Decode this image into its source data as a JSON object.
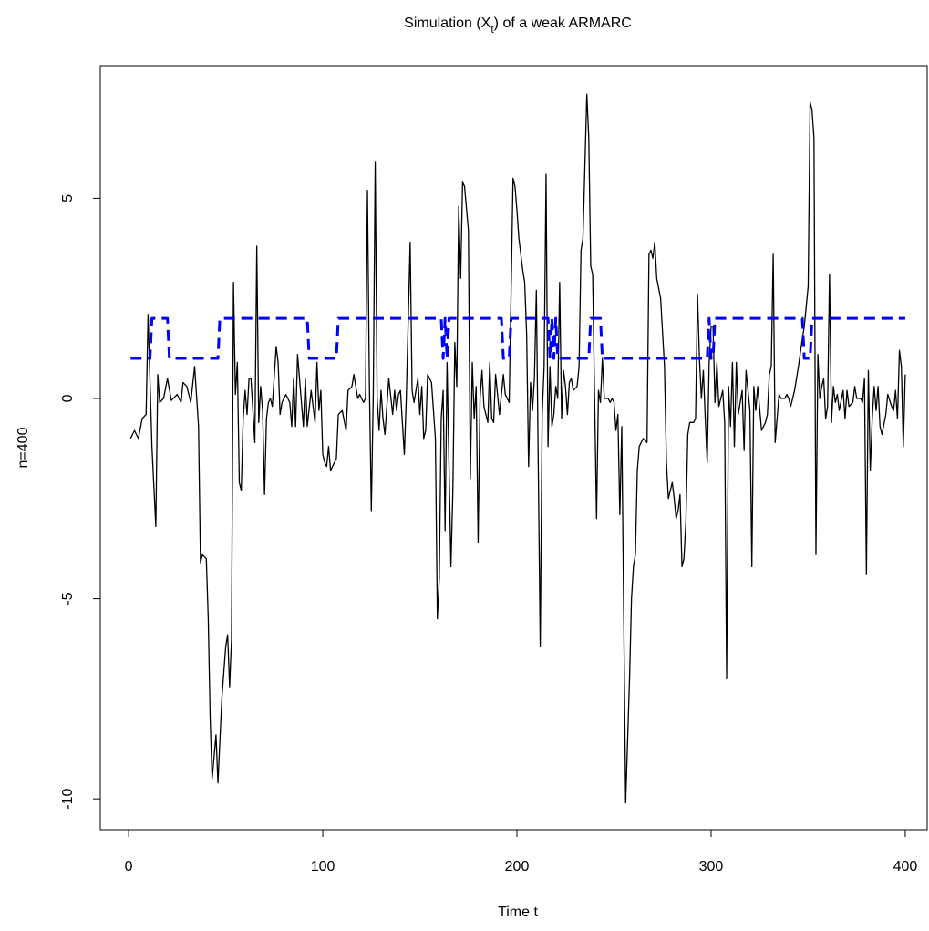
{
  "chart_data": {
    "type": "line",
    "title": [
      "Simulation (X",
      "t",
      ") of a weak ARMARC"
    ],
    "xlabel": "Time t",
    "ylabel": "n=400",
    "xlim": [
      -14.6,
      411.3
    ],
    "ylim": [
      -10.77,
      8.31
    ],
    "xticks": [
      0,
      100,
      200,
      300,
      400
    ],
    "yticks": [
      -10,
      -5,
      0,
      5
    ],
    "series": [
      {
        "color": "#000000",
        "dash": false,
        "x": [
          1,
          3,
          5,
          7,
          9,
          10,
          12,
          14,
          15,
          16,
          18,
          20,
          22,
          25,
          27,
          28,
          30,
          32,
          34,
          36,
          37,
          38,
          40,
          41,
          42,
          43,
          45,
          46,
          48,
          50,
          51,
          52,
          53,
          54,
          55,
          56,
          57,
          58,
          59,
          60,
          61,
          62,
          63,
          64,
          65,
          66,
          67,
          68,
          69,
          70,
          71,
          72,
          73,
          74,
          76,
          77,
          78,
          79,
          81,
          83,
          84,
          85,
          86,
          87,
          89,
          90,
          91,
          92,
          94,
          96,
          97,
          98,
          99,
          100,
          101,
          102,
          103,
          104,
          105,
          107,
          108,
          110,
          112,
          113,
          115,
          116,
          118,
          119,
          121,
          122,
          123,
          124,
          125,
          126,
          127,
          128,
          129,
          130,
          131,
          132,
          133,
          134,
          136,
          137,
          138,
          139,
          140,
          142,
          143,
          145,
          146,
          147,
          149,
          150,
          151,
          152,
          153,
          154,
          156,
          157,
          158,
          159,
          160,
          161,
          162,
          163,
          164,
          166,
          167,
          168,
          169,
          170,
          171,
          172,
          173,
          175,
          176,
          177,
          178,
          179,
          180,
          181,
          182,
          183,
          185,
          186,
          187,
          188,
          189,
          190,
          191,
          192,
          193,
          194,
          196,
          198,
          199,
          200,
          201,
          203,
          204,
          205,
          206,
          207,
          208,
          209,
          210,
          212,
          213,
          214,
          215,
          216,
          217,
          218,
          219,
          220,
          221,
          222,
          223,
          224,
          225,
          226,
          227,
          228,
          229,
          231,
          232,
          233,
          234,
          236,
          237,
          238,
          239,
          240,
          241,
          242,
          243,
          244,
          245,
          247,
          248,
          249,
          250,
          251,
          252,
          253,
          254,
          256,
          258,
          259,
          260,
          261,
          262,
          263,
          265,
          267,
          268,
          269,
          270,
          271,
          272,
          274,
          276,
          277,
          278,
          279,
          280,
          281,
          282,
          283,
          284,
          285,
          286,
          287,
          288,
          289,
          291,
          292,
          293,
          294,
          295,
          296,
          297,
          298,
          299,
          300,
          301,
          302,
          303,
          304,
          306,
          307,
          308,
          309,
          310,
          311,
          312,
          313,
          314,
          316,
          317,
          318,
          320,
          321,
          322,
          323,
          324,
          326,
          328,
          329,
          330,
          331,
          332,
          333,
          335,
          336,
          338,
          339,
          340,
          341,
          343,
          345,
          347,
          348,
          350,
          351,
          352,
          353,
          354,
          355,
          356,
          357,
          358,
          359,
          360,
          361,
          362,
          363,
          364,
          365,
          366,
          368,
          369,
          370,
          371,
          373,
          374,
          375,
          377,
          378,
          379,
          380,
          381,
          382,
          383,
          384,
          385,
          386,
          387,
          388,
          390,
          391,
          393,
          394,
          395,
          396,
          397,
          398,
          399,
          400
        ],
        "values": [
          -1.0,
          -0.8,
          -1.0,
          -0.5,
          -0.4,
          2.1,
          -1.2,
          -3.2,
          0.6,
          -0.1,
          0.0,
          0.5,
          -0.05,
          0.1,
          -0.1,
          0.4,
          0.3,
          -0.1,
          0.8,
          -0.7,
          -4.1,
          -3.9,
          -4.0,
          -5.5,
          -8.0,
          -9.5,
          -8.4,
          -9.6,
          -7.5,
          -6.2,
          -5.9,
          -7.2,
          -6.0,
          2.9,
          0.1,
          0.9,
          -2.1,
          -2.3,
          -0.5,
          0.2,
          -0.4,
          0.5,
          0.5,
          -0.3,
          -1.1,
          3.8,
          -0.6,
          0.3,
          -0.3,
          -2.4,
          -0.5,
          -0.1,
          0.0,
          -0.2,
          1.3,
          0.9,
          -0.4,
          -0.1,
          0.1,
          -0.1,
          -0.7,
          0.5,
          -0.7,
          1.1,
          -0.1,
          -0.7,
          0.5,
          -0.7,
          0.2,
          -0.6,
          0.9,
          -0.3,
          0.2,
          -1.4,
          -1.6,
          -1.7,
          -1.2,
          -1.8,
          -1.7,
          -1.5,
          -0.4,
          -0.3,
          -0.8,
          0.2,
          0.3,
          0.6,
          0.0,
          0.1,
          -0.1,
          0.0,
          5.2,
          0.4,
          -2.8,
          0.1,
          5.9,
          0.0,
          -0.8,
          0.2,
          -0.5,
          -0.9,
          -0.2,
          0.5,
          -0.4,
          0.2,
          -0.3,
          0.1,
          0.2,
          -1.4,
          0.0,
          3.9,
          0.2,
          -0.1,
          0.5,
          -0.4,
          0.3,
          -1.0,
          -0.8,
          0.6,
          0.4,
          -0.3,
          -1.0,
          -5.5,
          -4.5,
          -0.5,
          0.2,
          -3.3,
          0.9,
          -4.2,
          -2.3,
          1.4,
          0.3,
          4.8,
          3.0,
          5.4,
          5.3,
          4.2,
          -2.0,
          0.9,
          -0.5,
          0.3,
          -3.6,
          0.0,
          0.7,
          -0.2,
          -0.6,
          0.9,
          -0.5,
          -0.6,
          0.6,
          0.1,
          -0.4,
          0.1,
          0.6,
          0.1,
          -0.1,
          5.5,
          5.3,
          4.7,
          4.0,
          3.2,
          2.9,
          1.6,
          -1.7,
          0.4,
          -0.3,
          0.5,
          2.7,
          -6.2,
          -0.4,
          0.8,
          5.6,
          -1.2,
          0.8,
          -0.7,
          -0.4,
          0.3,
          0.0,
          2.9,
          -0.5,
          0.7,
          0.3,
          -0.4,
          0.4,
          0.5,
          0.2,
          0.3,
          0.8,
          3.7,
          4.0,
          7.6,
          6.5,
          3.3,
          3.1,
          0.0,
          -3.0,
          0.2,
          -0.1,
          1.0,
          0.0,
          0.0,
          -0.1,
          0.0,
          -0.1,
          -0.8,
          -0.4,
          -2.9,
          -0.7,
          -10.1,
          -7.0,
          -5.0,
          -4.2,
          -3.9,
          -1.8,
          -1.2,
          -1.0,
          -1.1,
          3.6,
          3.7,
          3.5,
          3.9,
          3.0,
          2.5,
          0.8,
          -1.6,
          -2.5,
          -2.3,
          -2.1,
          -2.5,
          -3.0,
          -2.8,
          -2.4,
          -4.2,
          -4.0,
          -3.1,
          -0.9,
          -0.6,
          -0.6,
          -0.5,
          2.6,
          1.0,
          0.0,
          0.7,
          -0.5,
          -1.6,
          0.9,
          1.8,
          1.8,
          -0.1,
          0.9,
          -0.2,
          0.2,
          -0.6,
          -7.0,
          0.3,
          -0.7,
          0.9,
          -1.2,
          0.9,
          -0.4,
          0.2,
          -1.3,
          0.7,
          -0.3,
          -4.2,
          0.3,
          -0.3,
          0.3,
          -0.8,
          -0.6,
          -0.4,
          0.6,
          0.8,
          3.6,
          -1.1,
          0.1,
          0.0,
          0.0,
          0.1,
          0.0,
          -0.2,
          0.2,
          0.8,
          1.5,
          1.8,
          2.8,
          7.4,
          7.2,
          6.5,
          -3.9,
          1.1,
          0.0,
          0.3,
          0.5,
          -0.5,
          -0.2,
          3.1,
          -0.6,
          0.3,
          -0.1,
          0.1,
          -0.3,
          0.2,
          -0.5,
          0.2,
          -0.2,
          -0.1,
          0.3,
          0.0,
          0.0,
          -0.1,
          0.5,
          -4.4,
          0.7,
          -1.8,
          -0.5,
          0.3,
          -0.3,
          0.3,
          -0.7,
          -0.9,
          -0.4,
          0.1,
          -0.2,
          -0.3,
          0.2,
          -0.5,
          1.2,
          0.8,
          -1.2,
          0.6
        ]
      },
      {
        "color": "#0000ff",
        "dash": true,
        "x": [
          1,
          11,
          12,
          20,
          21,
          46,
          47,
          92,
          93,
          107,
          108,
          161,
          162,
          163,
          164,
          165,
          192,
          193,
          196,
          197,
          216,
          217,
          218,
          219,
          220,
          221,
          237,
          238,
          243,
          244,
          298,
          299,
          300,
          301,
          302,
          347,
          348,
          351,
          352,
          400
        ],
        "values": [
          1,
          1,
          2,
          2,
          1,
          1,
          2,
          2,
          1,
          1,
          2,
          2,
          1,
          2,
          1,
          2,
          2,
          1,
          1,
          2,
          2,
          1,
          2,
          1,
          2,
          1,
          1,
          2,
          2,
          1,
          1,
          2,
          1,
          1,
          2,
          2,
          1,
          1,
          2,
          2
        ]
      }
    ]
  }
}
